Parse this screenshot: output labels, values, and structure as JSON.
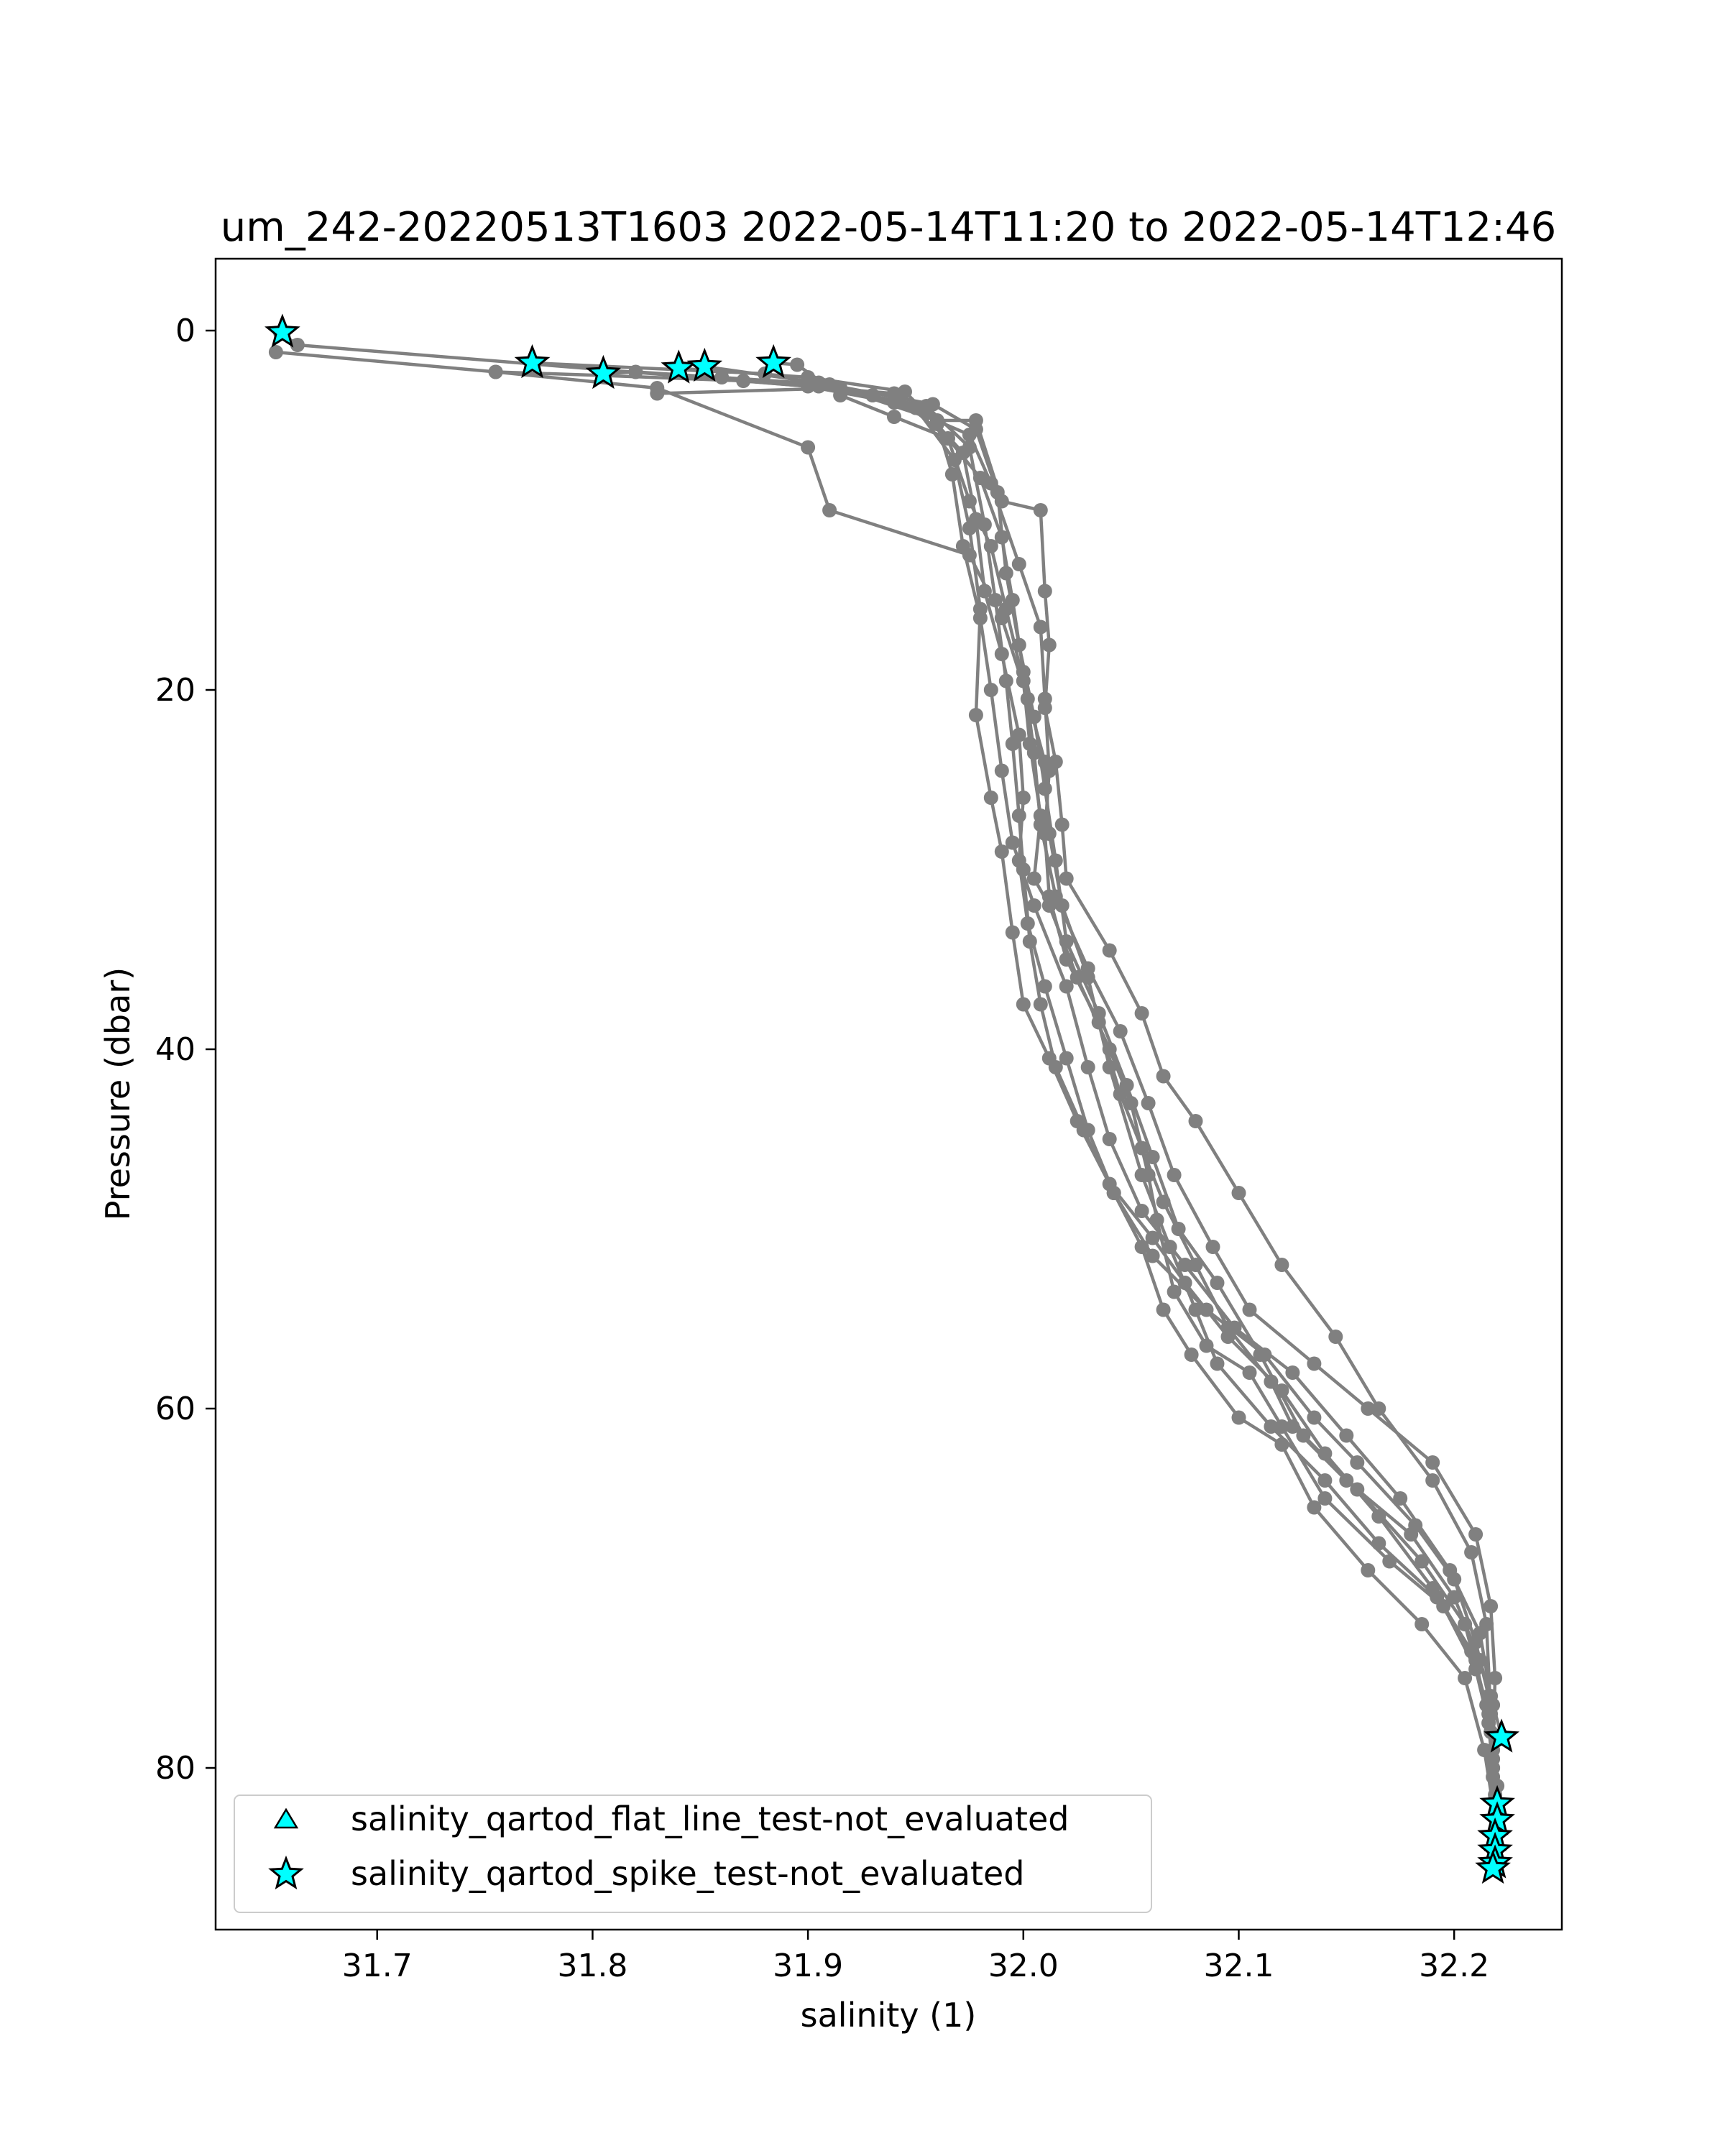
{
  "chart_data": {
    "type": "line",
    "title": "um_242-20220513T1603 2022-05-14T11:20 to 2022-05-14T12:46",
    "xlabel": "salinity (1)",
    "ylabel": "Pressure (dbar)",
    "xlim": [
      31.625,
      32.25
    ],
    "ylim": [
      89,
      -4
    ],
    "y_inverted": true,
    "xticks": [
      31.7,
      31.8,
      31.9,
      32.0,
      32.1,
      32.2
    ],
    "xtick_labels": [
      "31.7",
      "31.8",
      "31.9",
      "32.0",
      "32.1",
      "32.2"
    ],
    "yticks": [
      0,
      20,
      40,
      60,
      80
    ],
    "ytick_labels": [
      "0",
      "20",
      "40",
      "60",
      "80"
    ],
    "grid": false,
    "line_color": "#808080",
    "marker_color": "#00ffff",
    "legend_position": "lower-left",
    "legend": [
      {
        "label": "salinity_qartod_flat_line_test-not_evaluated",
        "marker": "triangle",
        "color": "#00ffff"
      },
      {
        "label": "salinity_qartod_spike_test-not_evaluated",
        "marker": "star",
        "color": "#00ffff"
      }
    ],
    "series": [
      {
        "points": [
          [
            31.655,
            0.1
          ],
          [
            31.663,
            0.8
          ],
          [
            31.9,
            3.1
          ],
          [
            31.94,
            4.0
          ],
          [
            31.975,
            5.8
          ],
          [
            31.985,
            8.5
          ],
          [
            31.998,
            13.0
          ],
          [
            32.008,
            16.5
          ],
          [
            32.01,
            20.5
          ],
          [
            32.012,
            24.5
          ],
          [
            32.01,
            28.0
          ],
          [
            32.012,
            31.5
          ],
          [
            32.02,
            35.0
          ],
          [
            32.035,
            38.5
          ],
          [
            32.045,
            42.5
          ],
          [
            32.055,
            45.5
          ],
          [
            32.065,
            48.5
          ],
          [
            32.08,
            52.0
          ],
          [
            32.095,
            55.5
          ],
          [
            32.115,
            58.5
          ],
          [
            32.125,
            61.0
          ],
          [
            32.15,
            64.0
          ],
          [
            32.18,
            67.0
          ],
          [
            32.2,
            70.5
          ],
          [
            32.212,
            74.0
          ],
          [
            32.218,
            76.5
          ],
          [
            32.222,
            78.2
          ]
        ]
      },
      {
        "points": [
          [
            31.653,
            1.2
          ],
          [
            31.755,
            2.3
          ],
          [
            31.805,
            2.5
          ],
          [
            31.87,
            2.8
          ],
          [
            31.94,
            3.5
          ],
          [
            31.965,
            6.0
          ],
          [
            31.975,
            9.5
          ],
          [
            31.985,
            12.0
          ],
          [
            31.992,
            15.5
          ],
          [
            32.0,
            19.5
          ],
          [
            32.003,
            23.0
          ],
          [
            32.008,
            27.0
          ],
          [
            32.005,
            30.5
          ],
          [
            32.012,
            32.0
          ],
          [
            32.025,
            36.0
          ],
          [
            32.04,
            40.0
          ],
          [
            32.05,
            43.0
          ],
          [
            32.058,
            47.0
          ],
          [
            32.062,
            49.5
          ],
          [
            32.07,
            53.5
          ],
          [
            32.085,
            56.5
          ],
          [
            32.105,
            58.0
          ],
          [
            32.12,
            61.0
          ],
          [
            32.14,
            65.0
          ],
          [
            32.17,
            68.5
          ],
          [
            32.195,
            71.0
          ],
          [
            32.21,
            74.5
          ],
          [
            32.216,
            77.5
          ],
          [
            32.22,
            81.0
          ],
          [
            32.22,
            82.0
          ]
        ]
      },
      {
        "points": [
          [
            31.772,
            1.8
          ],
          [
            31.88,
            2.4
          ],
          [
            31.93,
            3.6
          ],
          [
            31.955,
            4.6
          ],
          [
            31.972,
            6.8
          ],
          [
            31.978,
            10.5
          ],
          [
            31.982,
            14.5
          ],
          [
            31.99,
            18.0
          ],
          [
            31.998,
            22.5
          ],
          [
            32.0,
            26.0
          ],
          [
            31.998,
            29.5
          ],
          [
            32.002,
            33.0
          ],
          [
            32.01,
            36.5
          ],
          [
            32.02,
            40.5
          ],
          [
            32.03,
            44.5
          ],
          [
            32.042,
            48.0
          ],
          [
            32.055,
            51.0
          ],
          [
            32.065,
            54.5
          ],
          [
            32.078,
            57.0
          ],
          [
            32.1,
            60.5
          ],
          [
            32.12,
            62.0
          ],
          [
            32.135,
            65.5
          ],
          [
            32.16,
            69.0
          ],
          [
            32.185,
            72.0
          ],
          [
            32.205,
            75.0
          ],
          [
            32.214,
            79.0
          ],
          [
            32.219,
            82.8
          ]
        ]
      },
      {
        "points": [
          [
            31.805,
            2.4
          ],
          [
            31.82,
            2.3
          ],
          [
            31.91,
            3.0
          ],
          [
            31.95,
            4.3
          ],
          [
            31.968,
            7.2
          ],
          [
            31.975,
            11.0
          ],
          [
            31.98,
            15.5
          ],
          [
            31.978,
            21.4
          ],
          [
            31.985,
            26.0
          ],
          [
            31.99,
            29.0
          ],
          [
            31.995,
            33.5
          ],
          [
            32.0,
            37.5
          ],
          [
            32.012,
            40.5
          ],
          [
            32.025,
            44.0
          ],
          [
            32.04,
            47.5
          ],
          [
            32.06,
            50.5
          ],
          [
            32.075,
            53.0
          ],
          [
            32.095,
            56.0
          ],
          [
            32.12,
            59.0
          ],
          [
            32.14,
            62.5
          ],
          [
            32.165,
            66.0
          ],
          [
            32.19,
            70.0
          ],
          [
            32.208,
            73.5
          ],
          [
            32.216,
            77.0
          ],
          [
            32.218,
            80.5
          ],
          [
            32.219,
            83.8
          ]
        ]
      },
      {
        "points": [
          [
            31.84,
            2.1
          ],
          [
            31.9,
            2.6
          ],
          [
            31.945,
            3.4
          ],
          [
            31.96,
            5.2
          ],
          [
            31.967,
            8.0
          ],
          [
            31.972,
            12.0
          ],
          [
            31.98,
            16.0
          ],
          [
            31.985,
            20.0
          ],
          [
            31.99,
            24.5
          ],
          [
            31.995,
            28.5
          ],
          [
            32.005,
            32.0
          ],
          [
            32.02,
            36.5
          ],
          [
            32.03,
            41.0
          ],
          [
            32.04,
            45.0
          ],
          [
            32.055,
            49.0
          ],
          [
            32.075,
            52.0
          ],
          [
            32.098,
            55.5
          ],
          [
            32.125,
            58.0
          ],
          [
            32.15,
            61.5
          ],
          [
            32.175,
            65.0
          ],
          [
            32.198,
            69.0
          ],
          [
            32.212,
            72.5
          ],
          [
            32.217,
            76.0
          ],
          [
            32.218,
            80.0
          ],
          [
            32.218,
            84.5
          ]
        ]
      },
      {
        "points": [
          [
            31.852,
            2.0
          ],
          [
            31.905,
            2.9
          ],
          [
            31.958,
            4.1
          ],
          [
            31.978,
            5.5
          ],
          [
            31.988,
            9.0
          ],
          [
            31.992,
            13.5
          ],
          [
            31.998,
            17.5
          ],
          [
            32.005,
            21.5
          ],
          [
            32.01,
            25.5
          ],
          [
            32.015,
            29.5
          ],
          [
            32.02,
            34.0
          ],
          [
            32.035,
            38.0
          ],
          [
            32.048,
            42.0
          ],
          [
            32.06,
            46.0
          ],
          [
            32.072,
            50.0
          ],
          [
            32.09,
            53.0
          ],
          [
            32.11,
            57.0
          ],
          [
            32.13,
            61.5
          ],
          [
            32.155,
            64.5
          ],
          [
            32.185,
            68.5
          ],
          [
            32.205,
            72.0
          ],
          [
            32.215,
            76.5
          ],
          [
            32.218,
            80.0
          ],
          [
            32.218,
            85.2
          ]
        ]
      },
      {
        "points": [
          [
            31.884,
            1.8
          ],
          [
            31.895,
            1.9
          ],
          [
            31.915,
            3.6
          ],
          [
            31.94,
            4.8
          ],
          [
            31.965,
            6.0
          ],
          [
            31.98,
            8.2
          ],
          [
            31.99,
            11.5
          ],
          [
            31.995,
            15.0
          ],
          [
            32.0,
            19.0
          ],
          [
            32.005,
            23.5
          ],
          [
            32.008,
            27.5
          ],
          [
            32.015,
            31.5
          ],
          [
            32.03,
            35.5
          ],
          [
            32.045,
            39.0
          ],
          [
            32.058,
            43.0
          ],
          [
            32.07,
            47.0
          ],
          [
            32.088,
            51.0
          ],
          [
            32.105,
            54.5
          ],
          [
            32.135,
            57.5
          ],
          [
            32.16,
            60.0
          ],
          [
            32.19,
            63.0
          ],
          [
            32.21,
            67.0
          ],
          [
            32.217,
            71.0
          ],
          [
            32.219,
            75.0
          ],
          [
            32.218,
            79.0
          ],
          [
            32.218,
            85.5
          ]
        ]
      },
      {
        "points": [
          [
            31.755,
            2.3
          ],
          [
            31.83,
            3.2
          ],
          [
            31.9,
            6.5
          ],
          [
            31.91,
            10.0
          ],
          [
            31.975,
            12.5
          ],
          [
            31.99,
            16.0
          ],
          [
            32.002,
            20.5
          ],
          [
            32.01,
            24.0
          ],
          [
            32.012,
            28.0
          ],
          [
            32.018,
            32.0
          ],
          [
            32.03,
            36.0
          ],
          [
            32.04,
            41.0
          ],
          [
            32.055,
            47.0
          ],
          [
            32.068,
            51.0
          ],
          [
            32.08,
            54.5
          ],
          [
            32.09,
            57.5
          ],
          [
            32.115,
            61.0
          ],
          [
            32.14,
            64.0
          ],
          [
            32.165,
            67.5
          ],
          [
            32.192,
            70.5
          ],
          [
            32.21,
            74.0
          ],
          [
            32.217,
            78.0
          ],
          [
            32.219,
            82.5
          ]
        ]
      },
      {
        "points": [
          [
            31.83,
            3.5
          ],
          [
            31.915,
            3.2
          ],
          [
            31.96,
            5.0
          ],
          [
            31.978,
            5.0
          ],
          [
            31.99,
            9.5
          ],
          [
            32.008,
            10.0
          ],
          [
            32.01,
            14.5
          ],
          [
            32.012,
            17.5
          ],
          [
            32.01,
            21.0
          ],
          [
            32.015,
            24.0
          ],
          [
            32.018,
            27.5
          ],
          [
            32.02,
            30.5
          ],
          [
            32.04,
            34.5
          ],
          [
            32.055,
            38.0
          ],
          [
            32.065,
            41.5
          ],
          [
            32.08,
            44.0
          ],
          [
            32.1,
            48.0
          ],
          [
            32.12,
            52.0
          ],
          [
            32.145,
            56.0
          ],
          [
            32.165,
            60.0
          ],
          [
            32.19,
            64.0
          ],
          [
            32.208,
            68.0
          ],
          [
            32.215,
            72.0
          ],
          [
            32.217,
            77.0
          ],
          [
            32.219,
            81.5
          ]
        ]
      },
      {
        "points": [
          [
            31.86,
            2.6
          ],
          [
            31.905,
            3.1
          ],
          [
            31.955,
            4.2
          ],
          [
            31.975,
            6.5
          ],
          [
            31.982,
            10.8
          ],
          [
            31.987,
            15.0
          ],
          [
            31.992,
            19.5
          ],
          [
            31.995,
            23.0
          ],
          [
            31.998,
            27.0
          ],
          [
            32.0,
            30.0
          ],
          [
            32.003,
            34.0
          ],
          [
            32.008,
            37.5
          ],
          [
            32.015,
            41.0
          ],
          [
            32.028,
            44.5
          ],
          [
            32.042,
            48.0
          ],
          [
            32.06,
            51.5
          ],
          [
            32.085,
            54.5
          ],
          [
            32.112,
            57.0
          ],
          [
            32.135,
            60.5
          ],
          [
            32.155,
            63.0
          ],
          [
            32.182,
            66.5
          ],
          [
            32.2,
            69.5
          ],
          [
            32.21,
            73.0
          ],
          [
            32.216,
            76.0
          ],
          [
            32.218,
            79.5
          ],
          [
            32.219,
            84.0
          ]
        ]
      }
    ],
    "flagged_points": [
      [
        31.656,
        0.1
      ],
      [
        31.772,
        1.8
      ],
      [
        31.805,
        2.4
      ],
      [
        31.84,
        2.1
      ],
      [
        31.852,
        2.0
      ],
      [
        31.884,
        1.8
      ],
      [
        32.222,
        78.3
      ],
      [
        32.22,
        82.0
      ],
      [
        32.22,
        82.9
      ],
      [
        32.219,
        83.8
      ],
      [
        32.219,
        84.6
      ],
      [
        32.219,
        85.3
      ],
      [
        32.218,
        85.6
      ]
    ]
  }
}
